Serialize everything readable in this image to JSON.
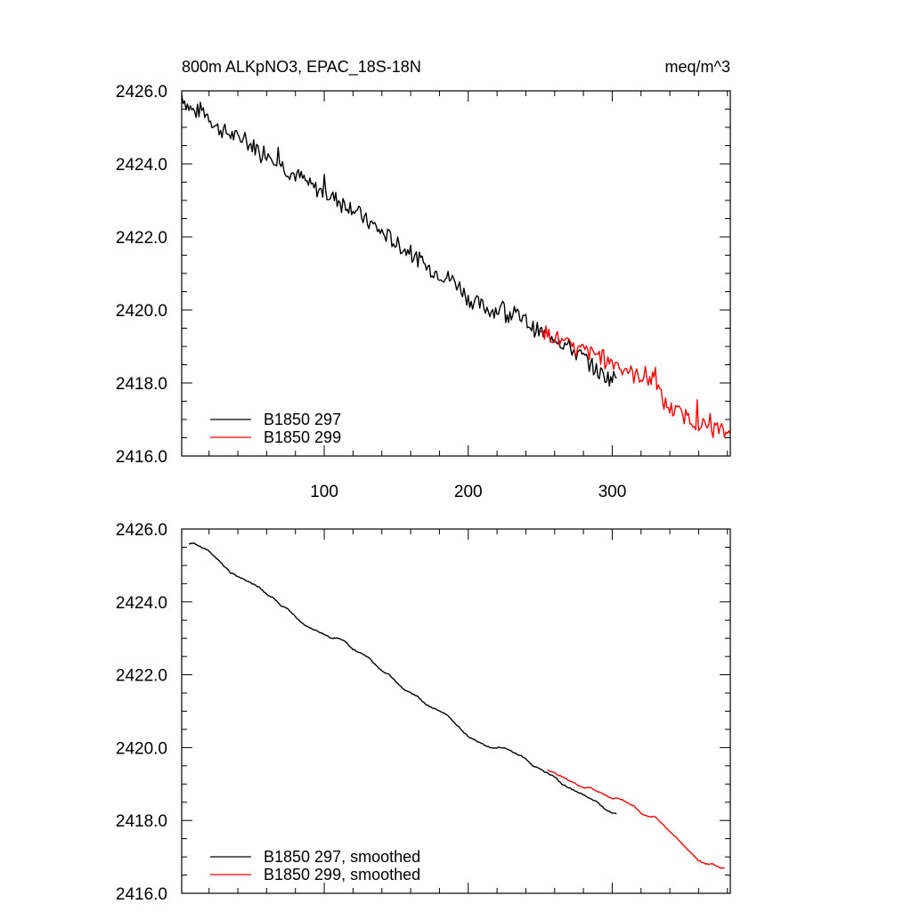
{
  "chart_data": [
    {
      "type": "line",
      "title": "800m ALKpNO3, EPAC_18S-18N",
      "units": "meq/m^3",
      "xlim": [
        1,
        382
      ],
      "ylim": [
        2416.0,
        2426.0
      ],
      "yticks": [
        2416,
        2418,
        2420,
        2422,
        2424,
        2426
      ],
      "ytick_labels": [
        "2416.0",
        "2418.0",
        "2420.0",
        "2422.0",
        "2424.0",
        "2426.0"
      ],
      "xticks": [
        100,
        200,
        300
      ],
      "xtick_labels": [
        "100",
        "200",
        "300"
      ],
      "legend_position": "bottom-left",
      "series": [
        {
          "name": "B1850 297",
          "color": "#000000",
          "x": [
            1,
            5,
            10,
            15,
            20,
            25,
            30,
            35,
            40,
            45,
            50,
            55,
            60,
            65,
            70,
            75,
            80,
            85,
            90,
            95,
            100,
            105,
            110,
            115,
            120,
            125,
            130,
            135,
            140,
            145,
            150,
            155,
            160,
            165,
            170,
            175,
            180,
            185,
            190,
            195,
            200,
            205,
            210,
            215,
            220,
            225,
            230,
            235,
            240,
            245,
            250,
            255,
            260,
            265,
            270,
            275,
            280,
            285,
            290,
            295,
            300,
            303
          ],
          "y": [
            2425.9,
            2425.6,
            2425.4,
            2425.5,
            2425.3,
            2425.0,
            2424.9,
            2424.8,
            2424.7,
            2424.6,
            2424.5,
            2424.4,
            2424.3,
            2424.2,
            2424.0,
            2423.8,
            2423.7,
            2423.6,
            2423.4,
            2423.3,
            2423.2,
            2423.1,
            2423.0,
            2422.9,
            2422.8,
            2422.6,
            2422.4,
            2422.3,
            2422.1,
            2422.0,
            2421.8,
            2421.7,
            2421.5,
            2421.4,
            2421.2,
            2421.1,
            2421.0,
            2420.9,
            2420.8,
            2420.6,
            2420.3,
            2420.2,
            2420.1,
            2420.0,
            2420.0,
            2420.0,
            2419.9,
            2419.8,
            2419.7,
            2419.5,
            2419.4,
            2419.3,
            2419.3,
            2419.1,
            2419.0,
            2418.8,
            2418.7,
            2418.5,
            2418.3,
            2418.2,
            2418.1,
            2418.2
          ]
        },
        {
          "name": "B1850 299",
          "color": "#ff0000",
          "x": [
            250,
            255,
            260,
            265,
            270,
            275,
            280,
            285,
            290,
            295,
            300,
            305,
            310,
            315,
            320,
            325,
            330,
            335,
            340,
            345,
            350,
            355,
            360,
            365,
            370,
            375,
            380,
            382
          ],
          "y": [
            2419.6,
            2419.3,
            2419.3,
            2419.1,
            2419.0,
            2418.9,
            2418.9,
            2418.8,
            2418.8,
            2418.6,
            2418.6,
            2418.5,
            2418.4,
            2418.2,
            2418.2,
            2418.1,
            2418.1,
            2417.5,
            2417.3,
            2417.2,
            2417.1,
            2417.0,
            2416.9,
            2416.8,
            2416.8,
            2416.7,
            2416.6,
            2416.8
          ]
        }
      ]
    },
    {
      "type": "line",
      "title": "",
      "xlim": [
        1,
        382
      ],
      "ylim": [
        2416.0,
        2426.0
      ],
      "yticks": [
        2416,
        2418,
        2420,
        2422,
        2424,
        2426
      ],
      "ytick_labels": [
        "2416.0",
        "2418.0",
        "2420.0",
        "2422.0",
        "2424.0",
        "2426.0"
      ],
      "xticks": [
        100,
        200,
        300
      ],
      "xtick_labels": [],
      "legend_position": "bottom-left",
      "series": [
        {
          "name": "B1850 297, smoothed",
          "color": "#000000",
          "x": [
            6,
            10,
            15,
            20,
            25,
            30,
            35,
            40,
            45,
            50,
            55,
            60,
            65,
            70,
            75,
            80,
            85,
            90,
            95,
            100,
            105,
            110,
            115,
            120,
            125,
            130,
            135,
            140,
            145,
            150,
            155,
            160,
            165,
            170,
            175,
            180,
            185,
            190,
            195,
            200,
            205,
            210,
            215,
            220,
            225,
            230,
            235,
            240,
            245,
            250,
            255,
            260,
            265,
            270,
            275,
            280,
            285,
            290,
            295,
            300,
            303
          ],
          "y": [
            2425.6,
            2425.6,
            2425.5,
            2425.4,
            2425.2,
            2425.0,
            2424.8,
            2424.7,
            2424.6,
            2424.5,
            2424.4,
            2424.2,
            2424.1,
            2423.9,
            2423.8,
            2423.6,
            2423.4,
            2423.3,
            2423.2,
            2423.1,
            2423.0,
            2423.0,
            2422.9,
            2422.7,
            2422.6,
            2422.5,
            2422.3,
            2422.1,
            2422.0,
            2421.8,
            2421.6,
            2421.5,
            2421.4,
            2421.2,
            2421.1,
            2421.0,
            2420.9,
            2420.7,
            2420.5,
            2420.3,
            2420.2,
            2420.1,
            2420.0,
            2420.0,
            2420.0,
            2419.9,
            2419.8,
            2419.7,
            2419.5,
            2419.4,
            2419.3,
            2419.2,
            2419.0,
            2418.9,
            2418.8,
            2418.7,
            2418.6,
            2418.5,
            2418.3,
            2418.2,
            2418.2
          ]
        },
        {
          "name": "B1850 299, smoothed",
          "color": "#ff0000",
          "x": [
            255,
            260,
            265,
            270,
            275,
            280,
            285,
            290,
            295,
            300,
            305,
            310,
            315,
            320,
            325,
            330,
            335,
            340,
            345,
            350,
            355,
            360,
            365,
            370,
            375,
            378
          ],
          "y": [
            2419.4,
            2419.3,
            2419.2,
            2419.1,
            2419.0,
            2418.9,
            2418.9,
            2418.8,
            2418.7,
            2418.6,
            2418.6,
            2418.5,
            2418.4,
            2418.2,
            2418.1,
            2418.1,
            2417.9,
            2417.7,
            2417.5,
            2417.3,
            2417.1,
            2416.9,
            2416.8,
            2416.8,
            2416.7,
            2416.7
          ]
        }
      ]
    }
  ]
}
